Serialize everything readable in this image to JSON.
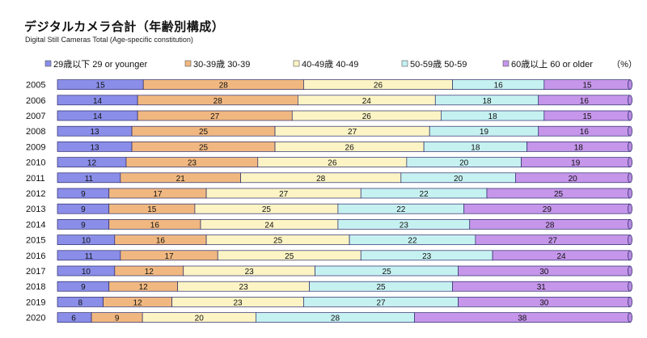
{
  "title": "デジタルカメラ合計（年齢別構成）",
  "subtitle": "Digital Still Cameras Total (Age-specific constitution)",
  "unit": "（%）",
  "chart_data": {
    "type": "bar",
    "orientation": "horizontal",
    "stacked": true,
    "percent": true,
    "title": "デジタルカメラ合計（年齢別構成）",
    "subtitle": "Digital Still Cameras Total (Age-specific constitution)",
    "unit": "（%）",
    "legend_position": "top",
    "categories": [
      "2005",
      "2006",
      "2007",
      "2008",
      "2009",
      "2010",
      "2011",
      "2012",
      "2013",
      "2014",
      "2015",
      "2016",
      "2017",
      "2018",
      "2019",
      "2020"
    ],
    "series": [
      {
        "name": "29歳以下 29 or younger",
        "color": "#8a8ee8",
        "values": [
          15,
          14,
          14,
          13,
          13,
          12,
          11,
          9,
          9,
          9,
          10,
          11,
          10,
          9,
          8,
          6
        ]
      },
      {
        "name": "30-39歳 30-39",
        "color": "#f0b880",
        "values": [
          28,
          28,
          27,
          25,
          25,
          23,
          21,
          17,
          15,
          16,
          16,
          17,
          12,
          12,
          12,
          9
        ]
      },
      {
        "name": "40-49歳 40-49",
        "color": "#fcf4c4",
        "values": [
          26,
          24,
          26,
          27,
          26,
          26,
          28,
          27,
          25,
          24,
          25,
          25,
          23,
          23,
          23,
          20
        ]
      },
      {
        "name": "50-59歳 50-59",
        "color": "#c6f1f1",
        "values": [
          16,
          18,
          18,
          19,
          18,
          20,
          20,
          22,
          22,
          23,
          22,
          23,
          25,
          25,
          27,
          28
        ]
      },
      {
        "name": "60歳以上 60 or older",
        "color": "#c596ea",
        "values": [
          15,
          16,
          15,
          16,
          18,
          19,
          20,
          25,
          29,
          28,
          27,
          24,
          30,
          31,
          30,
          38
        ]
      }
    ]
  }
}
